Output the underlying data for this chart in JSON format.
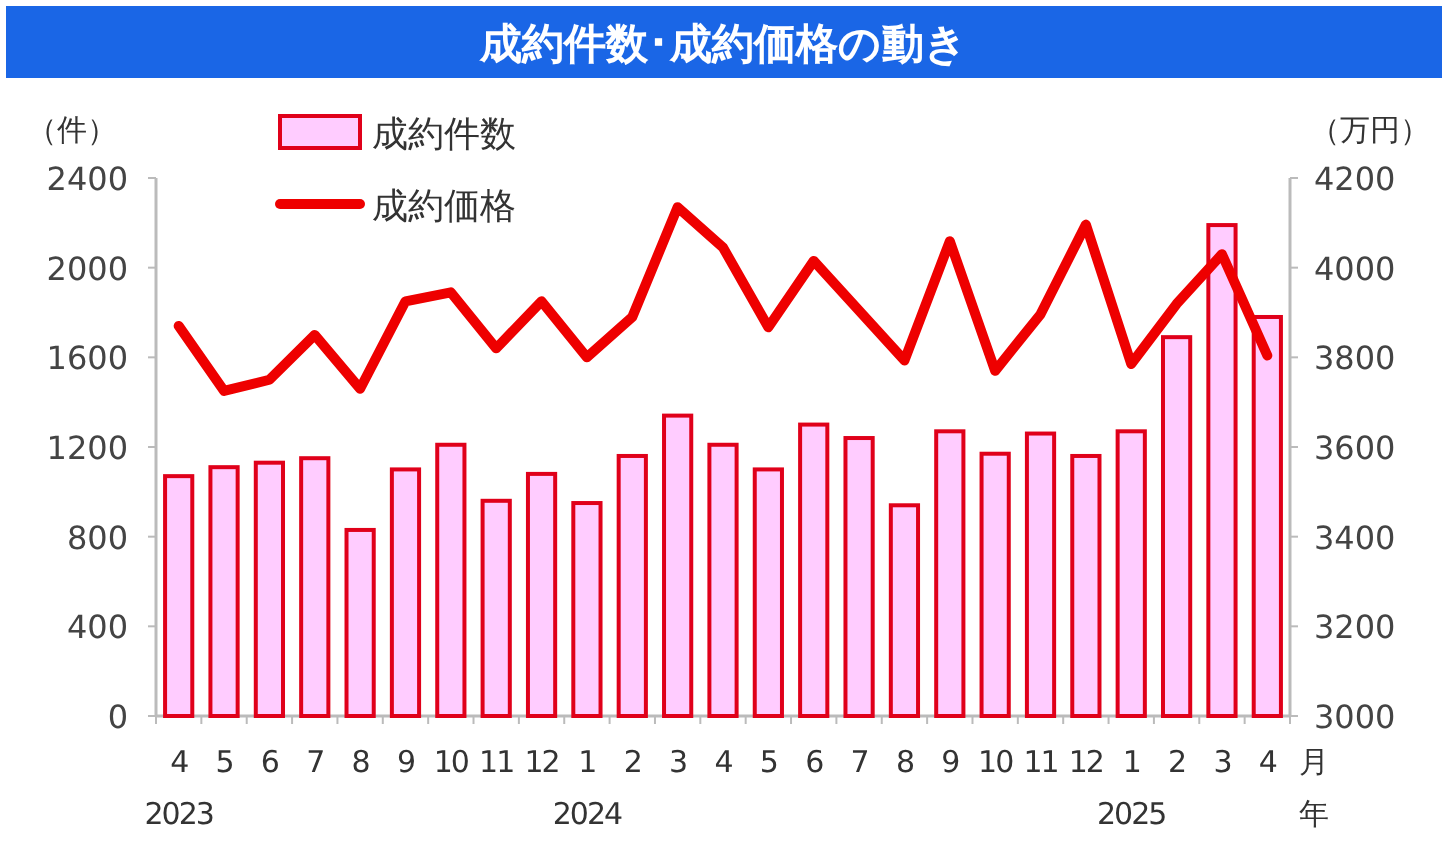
{
  "chart_data": {
    "type": "bar",
    "title": "成約件数･成約価格の動き",
    "ylabel": "（件）",
    "y2label": "（万円）",
    "xlabel": "月年",
    "categories": [
      "4\n2023",
      "5",
      "6",
      "7",
      "8",
      "9",
      "10",
      "11",
      "12",
      "1\n2024",
      "2",
      "3",
      "4",
      "5",
      "6",
      "7",
      "8",
      "9",
      "10",
      "11",
      "12",
      "1\n2025",
      "2",
      "3",
      "4"
    ],
    "series": [
      {
        "name": "成約件数",
        "color": "#ffccff",
        "values": [
          1070,
          1110,
          1130,
          1150,
          830,
          1100,
          1210,
          960,
          1080,
          950,
          1160,
          1340,
          1210,
          1100,
          1300,
          1240,
          940,
          1270,
          1170,
          1260,
          1160,
          1270,
          1690,
          2190,
          1780
        ]
      },
      {
        "name": "成約価格",
        "type": "line",
        "axis": "y2",
        "color": "#ee0000",
        "values": [
          3870,
          3725,
          3750,
          3850,
          3730,
          3925,
          3945,
          3820,
          3925,
          3800,
          3890,
          4135,
          4045,
          3867,
          4015,
          3904,
          3793,
          4059,
          3770,
          3896,
          4096,
          3785,
          3919,
          4030,
          3804
        ]
      }
    ],
    "ylim": [
      0,
      2400
    ],
    "yticks": [
      0,
      400,
      800,
      1200,
      1600,
      2000,
      2400
    ],
    "y2lim": [
      3000,
      4200
    ],
    "y2ticks": [
      3000,
      3200,
      3400,
      3600,
      3800,
      4000,
      4200
    ],
    "grid": false,
    "legend": "top left"
  }
}
